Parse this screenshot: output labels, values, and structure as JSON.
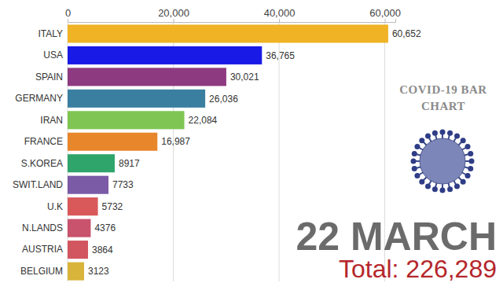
{
  "chart_data": {
    "type": "bar",
    "orientation": "horizontal",
    "title": "COVID-19 BAR CHART",
    "annotations": [
      "22 MARCH",
      "Total: 226,289"
    ],
    "categories": [
      "ITALY",
      "USA",
      "SPAIN",
      "GERMANY",
      "IRAN",
      "FRANCE",
      "S.KOREA",
      "SWIT.LAND",
      "U.K",
      "N.LANDS",
      "AUSTRIA",
      "BELGIUM"
    ],
    "values": [
      60652,
      36765,
      30021,
      26036,
      22084,
      16987,
      8917,
      7733,
      5732,
      4376,
      3864,
      3123
    ],
    "value_labels": [
      "60,652",
      "36,765",
      "30,021",
      "26,036",
      "22,084",
      "16,987",
      "8917",
      "7733",
      "5732",
      "4376",
      "3864",
      "3123"
    ],
    "colors": [
      "#efb325",
      "#1a1ae6",
      "#8e3a80",
      "#3b7fa0",
      "#7fc553",
      "#e8862c",
      "#2fa56c",
      "#7b5aa6",
      "#d9585a",
      "#c9536c",
      "#d2565f",
      "#d8b43a"
    ],
    "xlim": [
      0,
      62000
    ],
    "xticks": [
      0,
      {
        "value": 20000,
        "label": "20,000"
      },
      {
        "value": 40000,
        "label": "40,000"
      },
      {
        "value": 60000,
        "label": "60,000"
      }
    ],
    "grid": true,
    "data_labels": true
  }
}
